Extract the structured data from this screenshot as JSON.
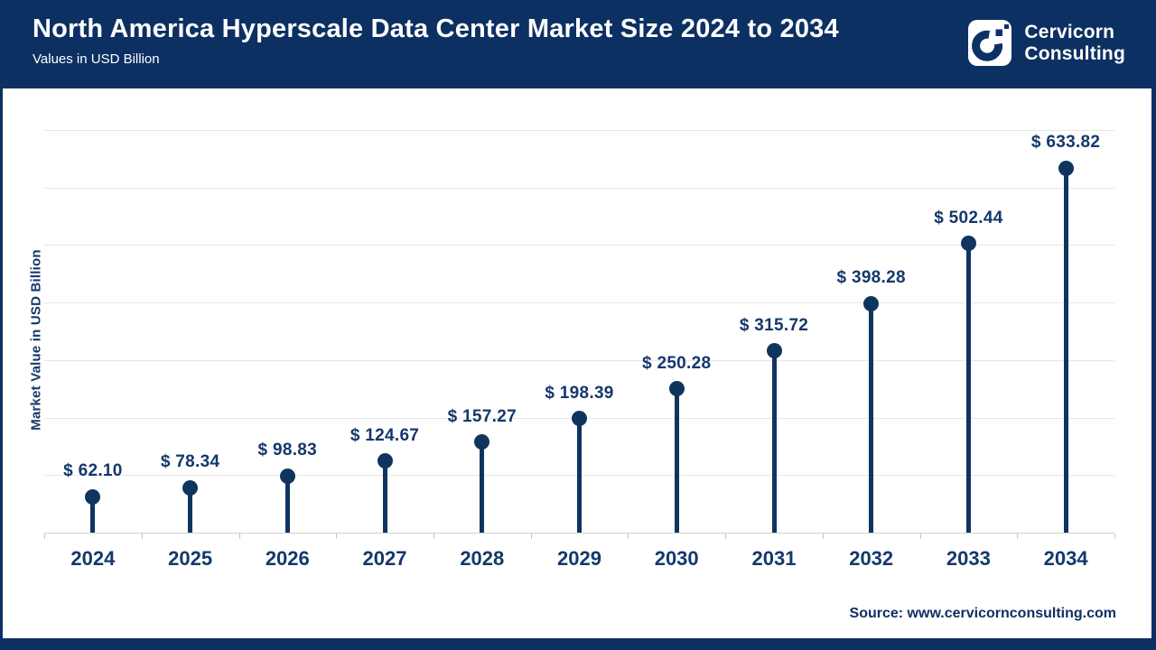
{
  "header": {
    "title": "North America Hyperscale Data Center Market Size 2024 to 2034",
    "subtitle": "Values in USD Billion",
    "logo": {
      "line1": "Cervicorn",
      "line2": "Consulting"
    }
  },
  "chart_data": {
    "type": "scatter",
    "style": "lollipop",
    "title": "North America Hyperscale Data Center Market Size 2024 to 2034",
    "subtitle": "Values in USD Billion",
    "categories": [
      "2024",
      "2025",
      "2026",
      "2027",
      "2028",
      "2029",
      "2030",
      "2031",
      "2032",
      "2033",
      "2034"
    ],
    "values": [
      62.1,
      78.34,
      98.83,
      124.67,
      157.27,
      198.39,
      250.28,
      315.72,
      398.28,
      502.44,
      633.82
    ],
    "value_labels": [
      "$ 62.10",
      "$ 78.34",
      "$ 98.83",
      "$ 124.67",
      "$ 157.27",
      "$ 198.39",
      "$ 250.28",
      "$ 315.72",
      "$ 398.28",
      "$ 502.44",
      "$ 633.82"
    ],
    "xlabel": "",
    "ylabel": "Market Value in USD Billion",
    "ylim": [
      0,
      700
    ],
    "grid_step": 100,
    "grid": true,
    "legend": false
  },
  "footer": {
    "source": "Source: www.cervicornconsulting.com"
  },
  "colors": {
    "header_bg": "#0c3062",
    "accent": "#0f355f",
    "label": "#14386b",
    "year_label": "#14386b",
    "source": "#0f2f62",
    "gridline": "#e8e8e8",
    "axis": "#d2d2d2",
    "logo_glyph": "#0d3166",
    "white": "#ffffff"
  }
}
